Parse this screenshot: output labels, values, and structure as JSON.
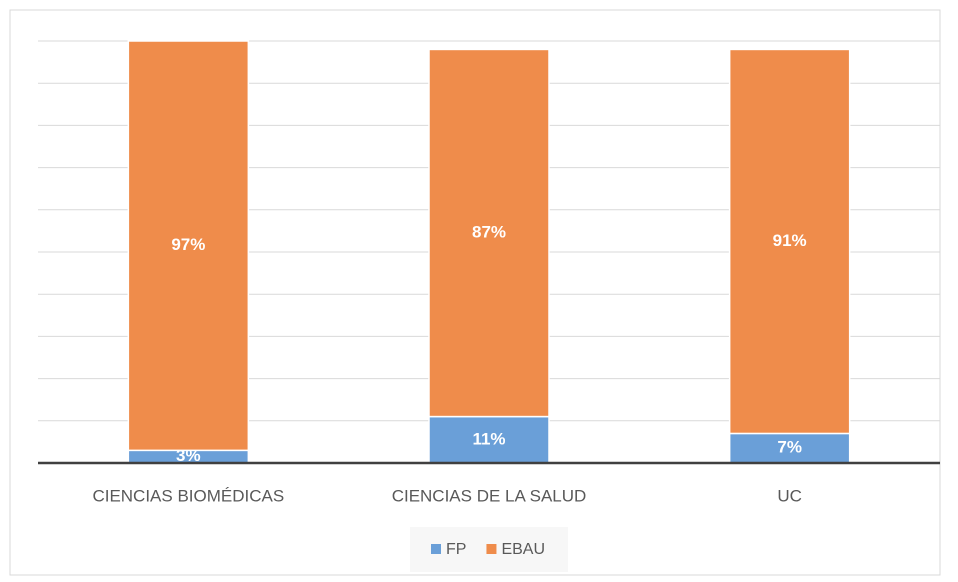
{
  "chart_data": {
    "type": "stacked_bar",
    "categories": [
      "CIENCIAS BIOMÉDICAS",
      "CIENCIAS DE LA SALUD",
      "UC"
    ],
    "series": [
      {
        "name": "FP",
        "color": "#6a9fd8",
        "values": [
          3,
          11,
          7
        ],
        "value_labels": [
          "3%",
          "11%",
          "7%"
        ]
      },
      {
        "name": "EBAU",
        "color": "#ef8c4b",
        "values": [
          97,
          87,
          91
        ],
        "value_labels": [
          "97%",
          "87%",
          "91%"
        ]
      }
    ],
    "ylim": [
      0,
      100
    ],
    "yticks": [
      0,
      10,
      20,
      30,
      40,
      50,
      60,
      70,
      80,
      90,
      100
    ],
    "grid": true,
    "legend": "bottom"
  }
}
